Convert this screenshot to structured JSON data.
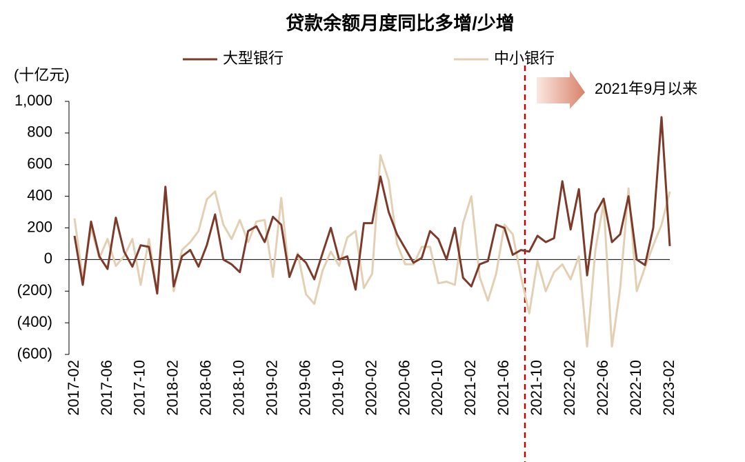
{
  "chart_data": {
    "type": "line",
    "title": "贷款余额月度同比多增/少增",
    "y_axis_label": "(十亿元)",
    "annotation": "2021年9月以来",
    "annotation_color": "#c00000",
    "negative_tick_label_color": "#c00000",
    "categories": [
      "2017-02",
      null,
      null,
      null,
      "2017-06",
      null,
      null,
      null,
      "2017-10",
      null,
      null,
      null,
      "2018-02",
      null,
      null,
      null,
      "2018-06",
      null,
      null,
      null,
      "2018-10",
      null,
      null,
      null,
      "2019-02",
      null,
      null,
      null,
      "2019-06",
      null,
      null,
      null,
      "2019-10",
      null,
      null,
      null,
      "2020-02",
      null,
      null,
      null,
      "2020-06",
      null,
      null,
      null,
      "2020-10",
      null,
      null,
      null,
      "2021-02",
      null,
      null,
      null,
      "2021-06",
      null,
      null,
      null,
      "2021-10",
      null,
      null,
      null,
      "2022-02",
      null,
      null,
      null,
      "2022-06",
      null,
      null,
      null,
      "2022-10",
      null,
      null,
      null,
      "2023-02"
    ],
    "series": [
      {
        "name": "大型银行",
        "color": "#7b3a2a",
        "values": [
          150,
          -160,
          240,
          20,
          -60,
          265,
          50,
          -45,
          90,
          80,
          -215,
          460,
          -170,
          20,
          60,
          -45,
          90,
          285,
          0,
          -30,
          -80,
          180,
          210,
          110,
          270,
          220,
          -110,
          30,
          -20,
          -125,
          40,
          200,
          0,
          20,
          -190,
          230,
          230,
          525,
          300,
          160,
          70,
          -20,
          10,
          180,
          130,
          0,
          200,
          -115,
          -170,
          -30,
          -10,
          220,
          200,
          30,
          60,
          50,
          150,
          110,
          135,
          495,
          190,
          445,
          -100,
          290,
          385,
          110,
          160,
          400,
          0,
          -35,
          200,
          900,
          85
        ]
      },
      {
        "name": "中小银行",
        "color": "#e3cfb3",
        "values": [
          260,
          -120,
          200,
          10,
          130,
          -40,
          20,
          130,
          -160,
          130,
          -200,
          440,
          -200,
          60,
          110,
          180,
          380,
          430,
          220,
          130,
          250,
          110,
          240,
          250,
          -110,
          390,
          -110,
          40,
          -220,
          -280,
          -70,
          50,
          -40,
          140,
          180,
          -180,
          -90,
          660,
          500,
          100,
          -30,
          -30,
          80,
          80,
          -150,
          -140,
          -160,
          230,
          400,
          -110,
          -260,
          -90,
          220,
          160,
          -110,
          -340,
          -10,
          -200,
          -80,
          -30,
          -125,
          20,
          -550,
          60,
          360,
          -550,
          -180,
          450,
          -200,
          -50,
          90,
          220,
          430
        ]
      }
    ],
    "ylim": [
      -600,
      1000
    ],
    "yticks": [
      {
        "value": -600,
        "label": "(600)"
      },
      {
        "value": -400,
        "label": "(400)"
      },
      {
        "value": -200,
        "label": "(200)"
      },
      0,
      200,
      400,
      600,
      800,
      {
        "value": 1000,
        "label": "1,000"
      }
    ]
  }
}
